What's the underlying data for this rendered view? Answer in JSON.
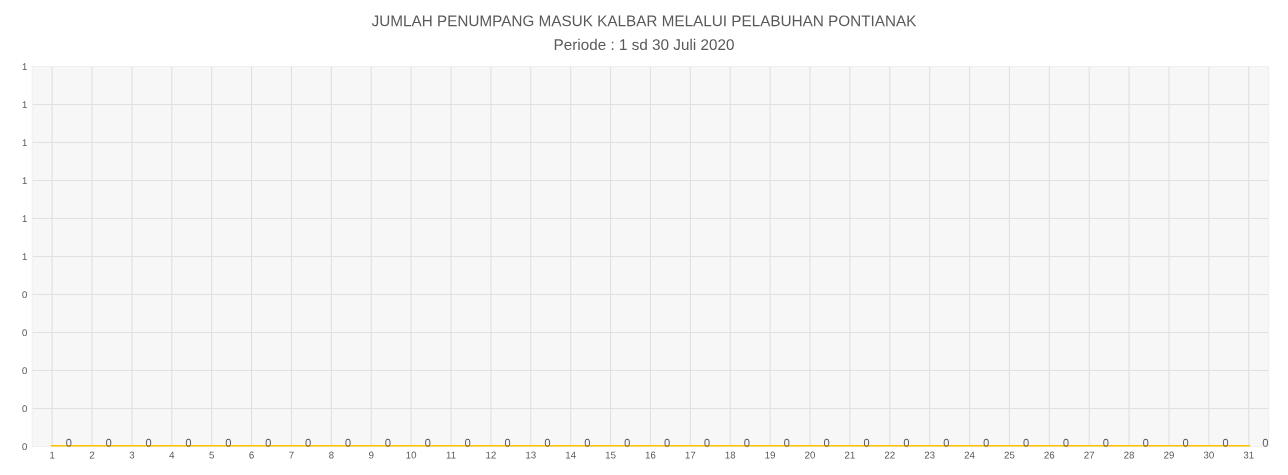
{
  "chart_data": {
    "type": "line",
    "title": "JUMLAH PENUMPANG MASUK KALBAR MELALUI PELABUHAN PONTIANAK",
    "subtitle": "Periode : 1 sd 30 Juli 2020",
    "x": [
      1,
      2,
      3,
      4,
      5,
      6,
      7,
      8,
      9,
      10,
      11,
      12,
      13,
      14,
      15,
      16,
      17,
      18,
      19,
      20,
      21,
      22,
      23,
      24,
      25,
      26,
      27,
      28,
      29,
      30,
      31
    ],
    "series": [
      {
        "color": "#ffc000",
        "values": [
          0,
          0,
          0,
          0,
          0,
          0,
          0,
          0,
          0,
          0,
          0,
          0,
          0,
          0,
          0,
          0,
          0,
          0,
          0,
          0,
          0,
          0,
          0,
          0,
          0,
          0,
          0,
          0,
          0,
          0,
          0
        ]
      }
    ],
    "xlim": [
      0.5,
      31.5
    ],
    "xticks": [
      1,
      2,
      3,
      4,
      5,
      6,
      7,
      8,
      9,
      10,
      11,
      12,
      13,
      14,
      15,
      16,
      17,
      18,
      19,
      20,
      21,
      22,
      23,
      24,
      25,
      26,
      27,
      28,
      29,
      30,
      31
    ],
    "ylim": [
      0,
      1
    ],
    "yticks": [
      {
        "value": 0,
        "label": "0"
      },
      {
        "value": 0.1,
        "label": "0"
      },
      {
        "value": 0.2,
        "label": "0"
      },
      {
        "value": 0.3,
        "label": "0"
      },
      {
        "value": 0.4,
        "label": "0"
      },
      {
        "value": 0.5,
        "label": "1"
      },
      {
        "value": 0.6,
        "label": "1"
      },
      {
        "value": 0.7,
        "label": "1"
      },
      {
        "value": 0.8,
        "label": "1"
      },
      {
        "value": 0.9,
        "label": "1"
      },
      {
        "value": 1,
        "label": "1"
      }
    ],
    "data_labels": true,
    "grid": true,
    "marker": "none",
    "line_style": "solid",
    "legend": false
  }
}
